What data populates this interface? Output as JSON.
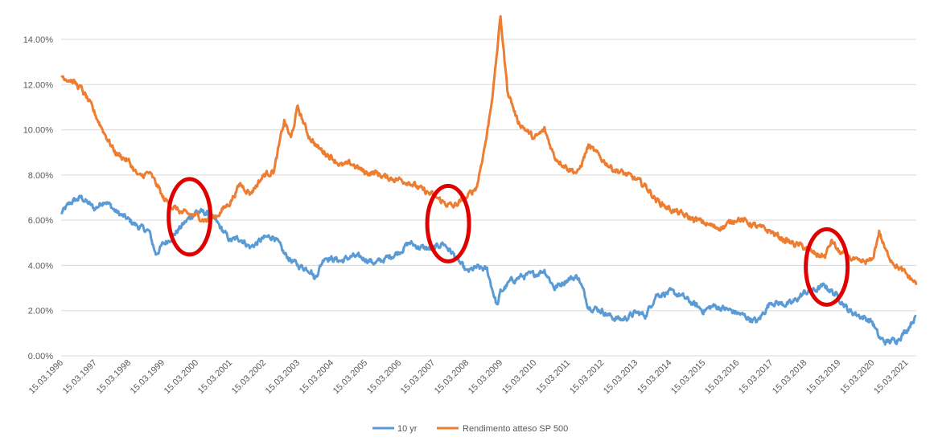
{
  "chart_data": {
    "type": "line",
    "title": "",
    "xlabel": "",
    "ylabel": "",
    "ylim": [
      0,
      0.14
    ],
    "y_ticks": [
      "0.00%",
      "2.00%",
      "4.00%",
      "6.00%",
      "8.00%",
      "10.00%",
      "12.00%",
      "14.00%"
    ],
    "x_ticks": [
      "15.03.1996",
      "15.03.1997",
      "15.03.1998",
      "15.03.1999",
      "15.03.2000",
      "15.03.2001",
      "15.03.2002",
      "15.03.2003",
      "15.03.2004",
      "15.03.2005",
      "15.03.2006",
      "15.03.2007",
      "15.03.2008",
      "15.03.2009",
      "15.03.2010",
      "15.03.2011",
      "15.03.2012",
      "15.03.2013",
      "15.03.2014",
      "15.03.2015",
      "15.03.2016",
      "15.03.2017",
      "15.03.2018",
      "15.03.2019",
      "15.03.2020",
      "15.03.2021"
    ],
    "grid": true,
    "legend_position": "bottom",
    "series": [
      {
        "name": "10 yr",
        "color": "#5b9bd5",
        "points": [
          [
            1996.0,
            0.063
          ],
          [
            1996.3,
            0.068
          ],
          [
            1996.6,
            0.07
          ],
          [
            1997.0,
            0.065
          ],
          [
            1997.3,
            0.069
          ],
          [
            1997.6,
            0.064
          ],
          [
            1998.0,
            0.06
          ],
          [
            1998.3,
            0.057
          ],
          [
            1998.6,
            0.055
          ],
          [
            1998.8,
            0.045
          ],
          [
            1999.0,
            0.049
          ],
          [
            1999.3,
            0.053
          ],
          [
            1999.6,
            0.058
          ],
          [
            2000.0,
            0.064
          ],
          [
            2000.3,
            0.063
          ],
          [
            2000.6,
            0.059
          ],
          [
            2001.0,
            0.051
          ],
          [
            2001.3,
            0.052
          ],
          [
            2001.6,
            0.048
          ],
          [
            2002.0,
            0.052
          ],
          [
            2002.3,
            0.053
          ],
          [
            2002.6,
            0.045
          ],
          [
            2003.0,
            0.04
          ],
          [
            2003.4,
            0.038
          ],
          [
            2003.5,
            0.034
          ],
          [
            2003.8,
            0.044
          ],
          [
            2004.0,
            0.043
          ],
          [
            2004.3,
            0.042
          ],
          [
            2004.6,
            0.044
          ],
          [
            2005.0,
            0.043
          ],
          [
            2005.3,
            0.041
          ],
          [
            2005.6,
            0.043
          ],
          [
            2006.0,
            0.046
          ],
          [
            2006.3,
            0.05
          ],
          [
            2006.6,
            0.048
          ],
          [
            2007.0,
            0.047
          ],
          [
            2007.3,
            0.05
          ],
          [
            2007.6,
            0.045
          ],
          [
            2008.0,
            0.037
          ],
          [
            2008.3,
            0.039
          ],
          [
            2008.6,
            0.038
          ],
          [
            2008.9,
            0.022
          ],
          [
            2009.0,
            0.028
          ],
          [
            2009.3,
            0.033
          ],
          [
            2009.6,
            0.035
          ],
          [
            2010.0,
            0.036
          ],
          [
            2010.3,
            0.038
          ],
          [
            2010.6,
            0.03
          ],
          [
            2011.0,
            0.034
          ],
          [
            2011.3,
            0.035
          ],
          [
            2011.6,
            0.022
          ],
          [
            2012.0,
            0.02
          ],
          [
            2012.3,
            0.017
          ],
          [
            2012.6,
            0.016
          ],
          [
            2013.0,
            0.019
          ],
          [
            2013.3,
            0.018
          ],
          [
            2013.6,
            0.027
          ],
          [
            2014.0,
            0.028
          ],
          [
            2014.3,
            0.027
          ],
          [
            2014.6,
            0.024
          ],
          [
            2015.0,
            0.02
          ],
          [
            2015.3,
            0.022
          ],
          [
            2015.6,
            0.021
          ],
          [
            2016.0,
            0.019
          ],
          [
            2016.3,
            0.017
          ],
          [
            2016.6,
            0.015
          ],
          [
            2017.0,
            0.024
          ],
          [
            2017.3,
            0.023
          ],
          [
            2017.6,
            0.023
          ],
          [
            2018.0,
            0.028
          ],
          [
            2018.3,
            0.029
          ],
          [
            2018.6,
            0.031
          ],
          [
            2019.0,
            0.026
          ],
          [
            2019.3,
            0.02
          ],
          [
            2019.6,
            0.018
          ],
          [
            2020.0,
            0.015
          ],
          [
            2020.2,
            0.008
          ],
          [
            2020.4,
            0.006
          ],
          [
            2020.7,
            0.007
          ],
          [
            2021.0,
            0.011
          ],
          [
            2021.2,
            0.016
          ],
          [
            2021.3,
            0.017
          ]
        ]
      },
      {
        "name": "Rendimento atteso SP 500",
        "color": "#ed7d31",
        "points": [
          [
            1996.0,
            0.124
          ],
          [
            1996.3,
            0.122
          ],
          [
            1996.6,
            0.118
          ],
          [
            1996.8,
            0.113
          ],
          [
            1997.0,
            0.107
          ],
          [
            1997.3,
            0.098
          ],
          [
            1997.6,
            0.09
          ],
          [
            1998.0,
            0.086
          ],
          [
            1998.3,
            0.079
          ],
          [
            1998.6,
            0.081
          ],
          [
            1998.9,
            0.074
          ],
          [
            1999.0,
            0.07
          ],
          [
            1999.3,
            0.066
          ],
          [
            1999.6,
            0.063
          ],
          [
            2000.0,
            0.062
          ],
          [
            2000.3,
            0.06
          ],
          [
            2000.6,
            0.062
          ],
          [
            2001.0,
            0.068
          ],
          [
            2001.3,
            0.076
          ],
          [
            2001.6,
            0.072
          ],
          [
            2002.0,
            0.08
          ],
          [
            2002.3,
            0.082
          ],
          [
            2002.6,
            0.104
          ],
          [
            2002.8,
            0.096
          ],
          [
            2003.0,
            0.11
          ],
          [
            2003.3,
            0.098
          ],
          [
            2003.6,
            0.092
          ],
          [
            2004.0,
            0.088
          ],
          [
            2004.3,
            0.084
          ],
          [
            2004.6,
            0.085
          ],
          [
            2005.0,
            0.081
          ],
          [
            2005.3,
            0.081
          ],
          [
            2005.6,
            0.079
          ],
          [
            2006.0,
            0.078
          ],
          [
            2006.3,
            0.077
          ],
          [
            2006.6,
            0.074
          ],
          [
            2007.0,
            0.071
          ],
          [
            2007.3,
            0.068
          ],
          [
            2007.6,
            0.066
          ],
          [
            2008.0,
            0.07
          ],
          [
            2008.3,
            0.075
          ],
          [
            2008.6,
            0.098
          ],
          [
            2008.8,
            0.12
          ],
          [
            2009.0,
            0.15
          ],
          [
            2009.2,
            0.118
          ],
          [
            2009.5,
            0.104
          ],
          [
            2010.0,
            0.096
          ],
          [
            2010.3,
            0.1
          ],
          [
            2010.6,
            0.088
          ],
          [
            2011.0,
            0.083
          ],
          [
            2011.3,
            0.081
          ],
          [
            2011.6,
            0.093
          ],
          [
            2012.0,
            0.087
          ],
          [
            2012.3,
            0.083
          ],
          [
            2012.6,
            0.081
          ],
          [
            2013.0,
            0.078
          ],
          [
            2013.3,
            0.075
          ],
          [
            2013.6,
            0.069
          ],
          [
            2014.0,
            0.065
          ],
          [
            2014.3,
            0.063
          ],
          [
            2014.6,
            0.061
          ],
          [
            2015.0,
            0.059
          ],
          [
            2015.3,
            0.057
          ],
          [
            2015.6,
            0.057
          ],
          [
            2016.0,
            0.061
          ],
          [
            2016.3,
            0.059
          ],
          [
            2016.6,
            0.057
          ],
          [
            2017.0,
            0.055
          ],
          [
            2017.3,
            0.052
          ],
          [
            2017.6,
            0.05
          ],
          [
            2018.0,
            0.048
          ],
          [
            2018.3,
            0.045
          ],
          [
            2018.6,
            0.044
          ],
          [
            2018.8,
            0.051
          ],
          [
            2019.0,
            0.046
          ],
          [
            2019.3,
            0.044
          ],
          [
            2019.6,
            0.041
          ],
          [
            2020.0,
            0.042
          ],
          [
            2020.2,
            0.055
          ],
          [
            2020.4,
            0.046
          ],
          [
            2020.7,
            0.04
          ],
          [
            2021.0,
            0.036
          ],
          [
            2021.3,
            0.032
          ]
        ]
      }
    ],
    "annotations": [
      {
        "shape": "ellipse",
        "color": "#e00000",
        "x_year": 1999.8,
        "y_value": 0.0615
      },
      {
        "shape": "ellipse",
        "color": "#e00000",
        "x_year": 2007.45,
        "y_value": 0.0585
      },
      {
        "shape": "ellipse",
        "color": "#e00000",
        "x_year": 2018.65,
        "y_value": 0.0393
      }
    ]
  }
}
